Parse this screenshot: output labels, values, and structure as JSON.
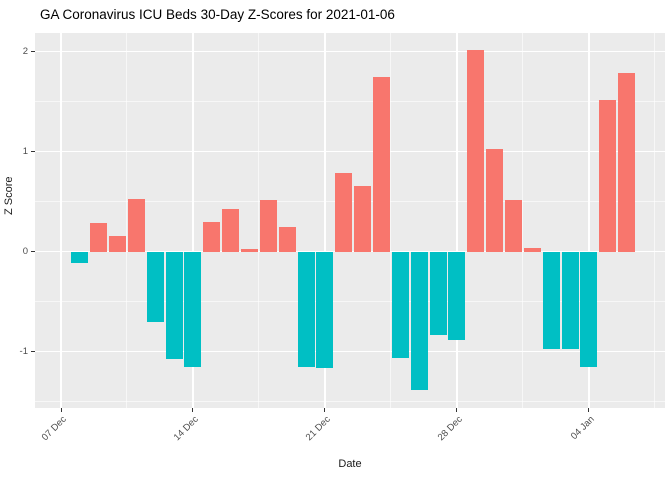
{
  "chart_data": {
    "type": "bar",
    "title": "GA Coronavirus ICU Beds 30-Day Z-Scores for 2021-01-06",
    "xlabel": "Date",
    "ylabel": "Z Score",
    "categories": [
      "08 Dec",
      "09 Dec",
      "10 Dec",
      "11 Dec",
      "12 Dec",
      "13 Dec",
      "14 Dec",
      "15 Dec",
      "16 Dec",
      "17 Dec",
      "18 Dec",
      "19 Dec",
      "20 Dec",
      "21 Dec",
      "22 Dec",
      "23 Dec",
      "24 Dec",
      "25 Dec",
      "26 Dec",
      "27 Dec",
      "28 Dec",
      "29 Dec",
      "30 Dec",
      "31 Dec",
      "01 Jan",
      "02 Jan",
      "03 Jan",
      "04 Jan",
      "05 Jan",
      "06 Jan"
    ],
    "values": [
      -0.11,
      0.29,
      0.16,
      0.53,
      -0.7,
      -1.07,
      -1.15,
      0.3,
      0.43,
      0.03,
      0.52,
      0.25,
      -1.15,
      -1.16,
      0.79,
      0.66,
      1.75,
      -1.06,
      -1.38,
      -0.83,
      -0.88,
      2.02,
      1.03,
      0.52,
      0.04,
      -0.97,
      -0.97,
      -1.15,
      1.52,
      1.79
    ],
    "x_tick_labels": [
      "07 Dec",
      "14 Dec",
      "21 Dec",
      "28 Dec",
      "04 Jan"
    ],
    "y_tick_labels": [
      "2",
      "1",
      "0",
      "-1"
    ],
    "y_tick_values": [
      2,
      1,
      0,
      -1
    ],
    "ylim": [
      -1.56,
      2.19
    ],
    "grid": "on",
    "legend": "none",
    "colors": {
      "positive_bar": "#F8766D",
      "negative_bar": "#00BFC4",
      "panel_background": "#EBEBEB",
      "gridline": "#FFFFFF",
      "tick_text": "#4D4D4D",
      "title_text": "#000000"
    }
  }
}
